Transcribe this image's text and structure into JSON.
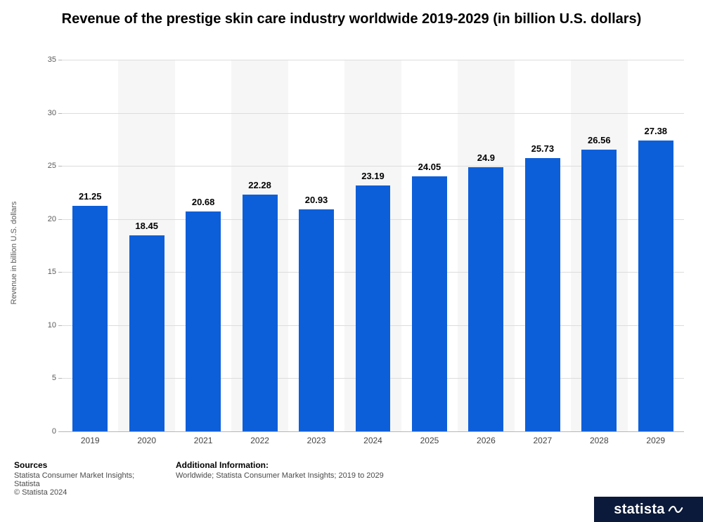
{
  "chart": {
    "type": "bar",
    "title": "Revenue of the prestige skin care industry worldwide 2019-2029 (in billion U.S. dollars)",
    "ylabel": "Revenue in billion U.S. dollars",
    "categories": [
      "2019",
      "2020",
      "2021",
      "2022",
      "2023",
      "2024",
      "2025",
      "2026",
      "2027",
      "2028",
      "2029"
    ],
    "values": [
      21.25,
      18.45,
      20.68,
      22.28,
      20.93,
      23.19,
      24.05,
      24.9,
      25.73,
      26.56,
      27.38
    ],
    "value_labels": [
      "21.25",
      "18.45",
      "20.68",
      "22.28",
      "20.93",
      "23.19",
      "24.05",
      "24.9",
      "25.73",
      "26.56",
      "27.38"
    ],
    "bar_color": "#0d5fd9",
    "band_color": "#f6f6f6",
    "grid_color": "#dcdcdc",
    "axis_color": "#b7b7b7",
    "background_color": "#ffffff",
    "ylim": [
      0,
      35
    ],
    "ytick_step": 5,
    "bar_width_ratio": 0.62,
    "title_fontsize": 20,
    "label_fontsize": 11,
    "value_label_fontsize": 13,
    "tick_fontsize": 12
  },
  "footer": {
    "sources_header": "Sources",
    "sources_text": "Statista Consumer Market Insights; Statista",
    "copyright": "© Statista 2024",
    "additional_header": "Additional Information:",
    "additional_text": "Worldwide; Statista Consumer Market Insights; 2019 to 2029"
  },
  "logo": {
    "text": "statista",
    "bg": "#0b1a3a"
  }
}
